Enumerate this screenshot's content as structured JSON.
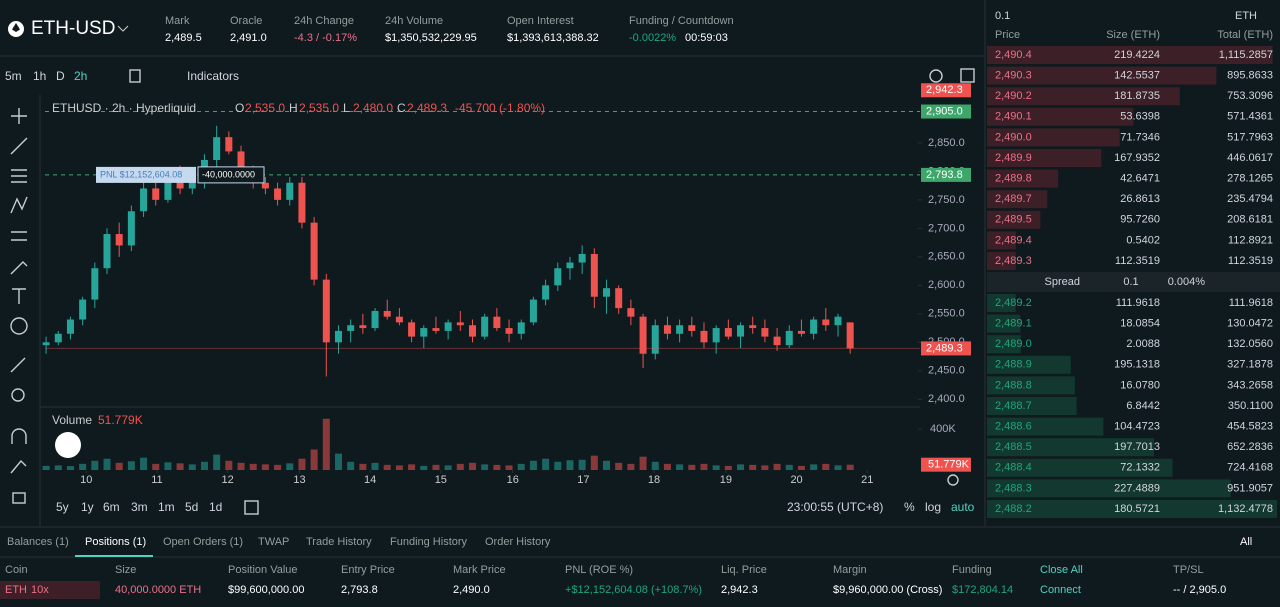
{
  "header": {
    "symbol": "ETH-USD",
    "stats": [
      {
        "label": "Mark",
        "value": "2,489.5"
      },
      {
        "label": "Oracle",
        "value": "2,491.0"
      },
      {
        "label": "24h Change",
        "value": "-4.3 / -0.17%",
        "color": "#ed7088"
      },
      {
        "label": "24h Volume",
        "value": "$1,350,532,229.95"
      },
      {
        "label": "Open Interest",
        "value": "$1,393,613,388.32"
      },
      {
        "label": "Funding / Countdown",
        "value": "-0.0022%",
        "color": "#1fa67d",
        "extra": "00:59:03"
      }
    ]
  },
  "toolbar": {
    "intervals": [
      "5m",
      "1h",
      "D",
      "2h"
    ],
    "indicators": "Indicators"
  },
  "chart_data": {
    "type": "candlestick",
    "up_color": "#26a69a",
    "down_color": "#ef5350",
    "legend": {
      "name": "ETHUSD · 2h · Hyperliquid",
      "ohlc": [
        {
          "k": "O",
          "v": "2,535.0"
        },
        {
          "k": "H",
          "v": "2,535.0"
        },
        {
          "k": "L",
          "v": "2,480.0"
        },
        {
          "k": "C",
          "v": "2,489.3"
        }
      ],
      "change": "-45.700 (-1.80%)"
    },
    "open": [
      2495,
      2500,
      2515,
      2540,
      2575,
      2630,
      2690,
      2670,
      2730,
      2770,
      2750,
      2790,
      2770,
      2795,
      2820,
      2860,
      2835,
      2800,
      2780,
      2770,
      2750,
      2780,
      2710,
      2610,
      2500,
      2520,
      2530,
      2525,
      2555,
      2545,
      2535,
      2510,
      2525,
      2520,
      2535,
      2530,
      2510,
      2545,
      2525,
      2515,
      2535,
      2575,
      2600,
      2630,
      2640,
      2655,
      2580,
      2595,
      2560,
      2545,
      2480,
      2530,
      2515,
      2530,
      2520,
      2500,
      2525,
      2510,
      2530,
      2525,
      2510,
      2495,
      2520,
      2515,
      2540,
      2530,
      2535
    ],
    "high": [
      2510,
      2520,
      2545,
      2580,
      2640,
      2700,
      2710,
      2740,
      2790,
      2780,
      2800,
      2810,
      2800,
      2830,
      2880,
      2870,
      2845,
      2810,
      2790,
      2780,
      2790,
      2790,
      2720,
      2620,
      2530,
      2540,
      2550,
      2560,
      2575,
      2560,
      2540,
      2530,
      2545,
      2540,
      2555,
      2540,
      2550,
      2560,
      2540,
      2540,
      2580,
      2610,
      2640,
      2650,
      2670,
      2665,
      2610,
      2600,
      2575,
      2550,
      2540,
      2545,
      2540,
      2545,
      2535,
      2530,
      2540,
      2535,
      2545,
      2540,
      2525,
      2530,
      2540,
      2545,
      2560,
      2550,
      2535
    ],
    "low": [
      2480,
      2495,
      2505,
      2530,
      2560,
      2620,
      2650,
      2660,
      2720,
      2740,
      2745,
      2760,
      2760,
      2770,
      2800,
      2830,
      2790,
      2770,
      2760,
      2740,
      2740,
      2700,
      2600,
      2440,
      2480,
      2500,
      2515,
      2520,
      2540,
      2530,
      2500,
      2490,
      2515,
      2505,
      2520,
      2500,
      2505,
      2520,
      2500,
      2505,
      2530,
      2565,
      2590,
      2610,
      2620,
      2560,
      2550,
      2550,
      2530,
      2455,
      2470,
      2505,
      2500,
      2510,
      2490,
      2480,
      2505,
      2490,
      2515,
      2500,
      2485,
      2490,
      2510,
      2505,
      2520,
      2510,
      2480
    ],
    "close": [
      2500,
      2515,
      2540,
      2575,
      2630,
      2690,
      2670,
      2730,
      2770,
      2750,
      2790,
      2770,
      2795,
      2820,
      2860,
      2835,
      2800,
      2780,
      2770,
      2750,
      2780,
      2710,
      2610,
      2500,
      2520,
      2530,
      2525,
      2555,
      2545,
      2535,
      2510,
      2525,
      2520,
      2535,
      2530,
      2510,
      2545,
      2525,
      2515,
      2535,
      2575,
      2600,
      2630,
      2640,
      2655,
      2580,
      2595,
      2560,
      2545,
      2480,
      2530,
      2515,
      2530,
      2520,
      2500,
      2525,
      2510,
      2530,
      2525,
      2510,
      2495,
      2520,
      2515,
      2540,
      2530,
      2545,
      2489.3
    ],
    "last_label": "2,489.3",
    "xlim": [
      -0.5,
      70.5
    ],
    "xticks": [
      {
        "value": 3.3,
        "label": "10"
      },
      {
        "value": 9.1,
        "label": "11"
      },
      {
        "value": 14.9,
        "label": "12"
      },
      {
        "value": 20.8,
        "label": "13"
      },
      {
        "value": 26.6,
        "label": "14"
      },
      {
        "value": 32.4,
        "label": "15"
      },
      {
        "value": 38.3,
        "label": "16"
      },
      {
        "value": 44.1,
        "label": "17"
      },
      {
        "value": 49.9,
        "label": "18"
      },
      {
        "value": 55.8,
        "label": "19"
      },
      {
        "value": 61.6,
        "label": "20"
      },
      {
        "value": 67.4,
        "label": "21"
      }
    ],
    "ylim": [
      2390,
      2934
    ],
    "yticks": [
      {
        "value": 2400,
        "label": "2,400.0"
      },
      {
        "value": 2450,
        "label": "2,450.0"
      },
      {
        "value": 2500,
        "label": "2,500.0"
      },
      {
        "value": 2550,
        "label": "2,550.0"
      },
      {
        "value": 2600,
        "label": "2,600.0"
      },
      {
        "value": 2650,
        "label": "2,650.0"
      },
      {
        "value": 2700,
        "label": "2,700.0"
      },
      {
        "value": 2750,
        "label": "2,750.0"
      },
      {
        "value": 2800,
        "label": "2,800.0"
      },
      {
        "value": 2850,
        "label": "2,850.0"
      }
    ],
    "price_lines": [
      {
        "value": 2942.3,
        "label": "2,942.3",
        "color": "#ef5350"
      },
      {
        "value": 2905,
        "label": "2,905.0",
        "color": "#3fa66b"
      },
      {
        "value": 2793.8,
        "label": "2,793.8",
        "color": "#3fa66b"
      }
    ],
    "pnl_label": "PNL $12,152,604.08",
    "size_label": "-40,000.0000",
    "volume": {
      "title": "Volume",
      "last_label": "51.779K",
      "ylim": [
        0,
        566000
      ],
      "yticks": [
        {
          "value": 400000,
          "label": "400K"
        }
      ],
      "values": [
        40000,
        45000,
        38000,
        60000,
        90000,
        110000,
        70000,
        85000,
        120000,
        60000,
        75000,
        65000,
        55000,
        80000,
        150000,
        90000,
        70000,
        60000,
        55000,
        50000,
        65000,
        110000,
        200000,
        500000,
        160000,
        80000,
        60000,
        70000,
        50000,
        45000,
        55000,
        40000,
        50000,
        45000,
        60000,
        70000,
        55000,
        50000,
        45000,
        60000,
        90000,
        110000,
        80000,
        95000,
        100000,
        140000,
        90000,
        70000,
        60000,
        130000,
        80000,
        60000,
        55000,
        50000,
        60000,
        45000,
        40000,
        55000,
        50000,
        45000,
        60000,
        50000,
        40000,
        55000,
        60000,
        45000,
        51779
      ]
    }
  },
  "range_bar": {
    "ranges": [
      "5y",
      "1y",
      "6m",
      "3m",
      "1m",
      "5d",
      "1d"
    ],
    "time": "23:00:55 (UTC+8)",
    "pct": "%",
    "log": "log",
    "auto": "auto"
  },
  "orderbook": {
    "tick": "0.1",
    "unit": "ETH",
    "headers": [
      "Price",
      "Size (ETH)",
      "Total (ETH)"
    ],
    "asks": [
      [
        "2,490.4",
        "219.4224",
        "1,115.2857"
      ],
      [
        "2,490.3",
        "142.5537",
        "895.8633"
      ],
      [
        "2,490.2",
        "181.8735",
        "753.3096"
      ],
      [
        "2,490.1",
        "53.6398",
        "571.4361"
      ],
      [
        "2,490.0",
        "71.7346",
        "517.7963"
      ],
      [
        "2,489.9",
        "167.9352",
        "446.0617"
      ],
      [
        "2,489.8",
        "42.6471",
        "278.1265"
      ],
      [
        "2,489.7",
        "26.8613",
        "235.4794"
      ],
      [
        "2,489.5",
        "95.7260",
        "208.6181"
      ],
      [
        "2,489.4",
        "0.5402",
        "112.8921"
      ],
      [
        "2,489.3",
        "112.3519",
        "112.3519"
      ]
    ],
    "spread": [
      "Spread",
      "0.1",
      "0.004%"
    ],
    "bids": [
      [
        "2,489.2",
        "111.9618",
        "111.9618"
      ],
      [
        "2,489.1",
        "18.0854",
        "130.0472"
      ],
      [
        "2,489.0",
        "2.0088",
        "132.0560"
      ],
      [
        "2,488.9",
        "195.1318",
        "327.1878"
      ],
      [
        "2,488.8",
        "16.0780",
        "343.2658"
      ],
      [
        "2,488.7",
        "6.8442",
        "350.1100"
      ],
      [
        "2,488.6",
        "104.4723",
        "454.5823"
      ],
      [
        "2,488.5",
        "197.7013",
        "652.2836"
      ],
      [
        "2,488.4",
        "72.1332",
        "724.4168"
      ],
      [
        "2,488.3",
        "227.4889",
        "951.9057"
      ],
      [
        "2,488.2",
        "180.5721",
        "1,132.4778"
      ]
    ]
  },
  "bottom": {
    "tabs": [
      "Balances (1)",
      "Positions (1)",
      "Open Orders (1)",
      "TWAP",
      "Trade History",
      "Funding History",
      "Order History"
    ],
    "filter": "All",
    "columns": [
      {
        "header": "Coin",
        "value": "ETH",
        "extra": "10x",
        "color": "#ed7088"
      },
      {
        "header": "Size",
        "value": "40,000.0000 ETH",
        "color": "#ed7088"
      },
      {
        "header": "Position Value",
        "value": "$99,600,000.00"
      },
      {
        "header": "Entry Price",
        "value": "2,793.8"
      },
      {
        "header": "Mark Price",
        "value": "2,490.0"
      },
      {
        "header": "PNL (ROE %)",
        "value": "+$12,152,604.08 (+108.7%)",
        "color": "#1fa67d"
      },
      {
        "header": "Liq. Price",
        "value": "2,942.3"
      },
      {
        "header": "Margin",
        "value": "$9,960,000.00 (Cross)"
      },
      {
        "header": "Funding",
        "value": "$172,804.14",
        "color": "#1fa67d"
      },
      {
        "header": "Close All",
        "value": "Connect",
        "color": "#50d2c1"
      },
      {
        "header": "TP/SL",
        "value": "-- / 2,905.0"
      }
    ]
  }
}
